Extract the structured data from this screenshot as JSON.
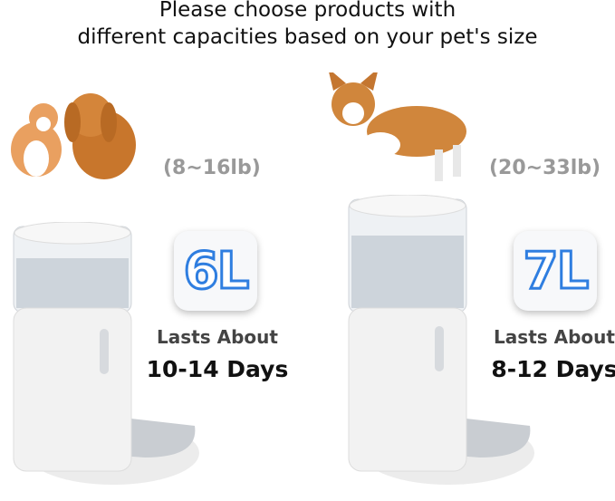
{
  "heading": {
    "line1": "Please choose products with",
    "line2": "different capacities based on your pet's size"
  },
  "small": {
    "weight": "(8~16lb)",
    "capacity": "6L",
    "lasts_label": "Lasts About",
    "duration": "10-14 Days"
  },
  "large": {
    "weight": "(20~33lb)",
    "capacity": "7L",
    "lasts_label": "Lasts About",
    "duration": "8-12 Days"
  },
  "colors": {
    "badge_outline": "#2f7ee0",
    "weight_text": "#999999"
  }
}
